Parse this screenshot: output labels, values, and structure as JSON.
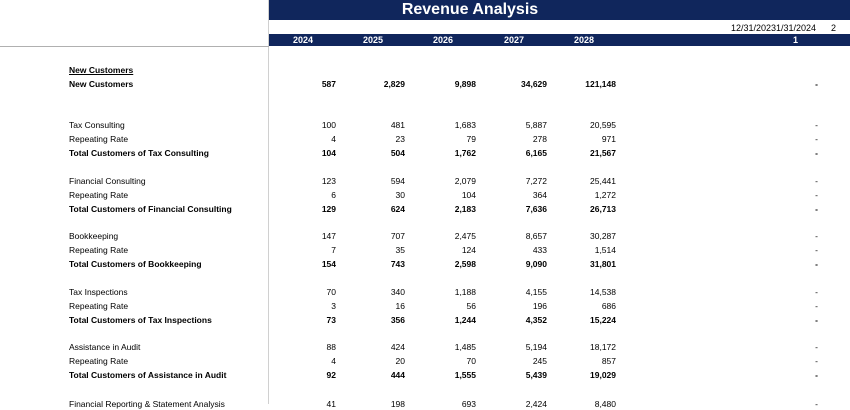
{
  "title": "Revenue Analysis",
  "dates": [
    "12/31/2023",
    "1/31/2024",
    "2"
  ],
  "period_index": "1",
  "years": [
    "2024",
    "2025",
    "2026",
    "2027",
    "2028"
  ],
  "rows": [
    {
      "label": "New Customers",
      "kind": "section",
      "values": [
        "",
        "",
        "",
        "",
        "",
        ""
      ]
    },
    {
      "label": "New Customers",
      "kind": "total",
      "values": [
        "587",
        "2,829",
        "9,898",
        "34,629",
        "121,148",
        "-"
      ]
    },
    {
      "label": "Tax Consulting",
      "kind": "item",
      "values": [
        "100",
        "481",
        "1,683",
        "5,887",
        "20,595",
        "-"
      ]
    },
    {
      "label": "Repeating Rate",
      "kind": "item",
      "values": [
        "4",
        "23",
        "79",
        "278",
        "971",
        "-"
      ]
    },
    {
      "label": "Total Customers of Tax Consulting",
      "kind": "total",
      "values": [
        "104",
        "504",
        "1,762",
        "6,165",
        "21,567",
        "-"
      ]
    },
    {
      "label": "Financial Consulting",
      "kind": "item",
      "values": [
        "123",
        "594",
        "2,079",
        "7,272",
        "25,441",
        "-"
      ]
    },
    {
      "label": "Repeating Rate",
      "kind": "item",
      "values": [
        "6",
        "30",
        "104",
        "364",
        "1,272",
        "-"
      ]
    },
    {
      "label": "Total Customers of Financial Consulting",
      "kind": "total",
      "values": [
        "129",
        "624",
        "2,183",
        "7,636",
        "26,713",
        "-"
      ]
    },
    {
      "label": "Bookkeeping",
      "kind": "item",
      "values": [
        "147",
        "707",
        "2,475",
        "8,657",
        "30,287",
        "-"
      ]
    },
    {
      "label": "Repeating Rate",
      "kind": "item",
      "values": [
        "7",
        "35",
        "124",
        "433",
        "1,514",
        "-"
      ]
    },
    {
      "label": "Total Customers of Bookkeeping",
      "kind": "total",
      "values": [
        "154",
        "743",
        "2,598",
        "9,090",
        "31,801",
        "-"
      ]
    },
    {
      "label": "Tax Inspections",
      "kind": "item",
      "values": [
        "70",
        "340",
        "1,188",
        "4,155",
        "14,538",
        "-"
      ]
    },
    {
      "label": "Repeating Rate",
      "kind": "item",
      "values": [
        "3",
        "16",
        "56",
        "196",
        "686",
        "-"
      ]
    },
    {
      "label": "Total Customers of Tax Inspections",
      "kind": "total",
      "values": [
        "73",
        "356",
        "1,244",
        "4,352",
        "15,224",
        "-"
      ]
    },
    {
      "label": "Assistance in Audit",
      "kind": "item",
      "values": [
        "88",
        "424",
        "1,485",
        "5,194",
        "18,172",
        "-"
      ]
    },
    {
      "label": "Repeating Rate",
      "kind": "item",
      "values": [
        "4",
        "20",
        "70",
        "245",
        "857",
        "-"
      ]
    },
    {
      "label": "Total Customers of Assistance in Audit",
      "kind": "total",
      "values": [
        "92",
        "444",
        "1,555",
        "5,439",
        "19,029",
        "-"
      ]
    },
    {
      "label": "Financial Reporting & Statement Analysis",
      "kind": "item",
      "values": [
        "41",
        "198",
        "693",
        "2,424",
        "8,480",
        "-"
      ]
    }
  ]
}
